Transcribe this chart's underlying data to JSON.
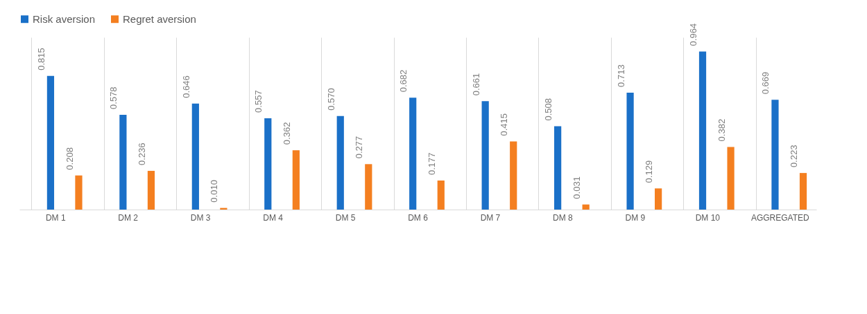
{
  "chart_data": {
    "type": "bar",
    "categories": [
      "DM 1",
      "DM 2",
      "DM 3",
      "DM 4",
      "DM 5",
      "DM 6",
      "DM 7",
      "DM 8",
      "DM 9",
      "DM 10",
      "AGGREGATED"
    ],
    "series": [
      {
        "name": "Risk aversion",
        "color": "#1a70c8",
        "values": [
          0.815,
          0.578,
          0.646,
          0.557,
          0.57,
          0.682,
          0.661,
          0.508,
          0.713,
          0.964,
          0.669
        ],
        "value_labels": [
          "0.815",
          "0.578",
          "0.646",
          "0.557",
          "0.570",
          "0.682",
          "0.661",
          "0.508",
          "0.713",
          "0.964",
          "0.669"
        ]
      },
      {
        "name": "Regret aversion",
        "color": "#f47f20",
        "values": [
          0.208,
          0.236,
          0.01,
          0.362,
          0.277,
          0.177,
          0.415,
          0.031,
          0.129,
          0.382,
          0.223
        ],
        "value_labels": [
          "0.208",
          "0.236",
          "0.010",
          "0.362",
          "0.277",
          "0.177",
          "0.415",
          "0.031",
          "0.129",
          "0.382",
          "0.223"
        ]
      }
    ],
    "ylim": [
      0,
      1.05
    ],
    "grid": "x",
    "legend": "top",
    "tick_labels": "x"
  }
}
